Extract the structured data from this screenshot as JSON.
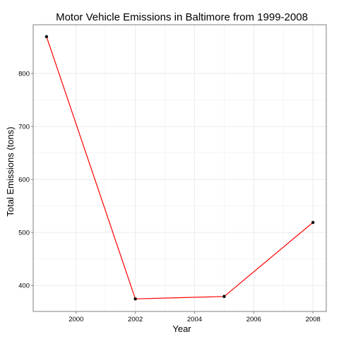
{
  "chart_data": {
    "type": "line",
    "title": "Motor Vehicle Emissions in Baltimore from 1999-2008",
    "xlabel": "Year",
    "ylabel": "Total Emissions (tons)",
    "x": [
      1999,
      2002,
      2005,
      2008
    ],
    "series": [
      {
        "values": [
          869.5,
          374.7,
          379.3,
          518.9
        ]
      }
    ],
    "xlim": [
      1998.55,
      2008.45
    ],
    "ylim": [
      351,
      892
    ],
    "xticks": [
      2000,
      2002,
      2004,
      2006,
      2008
    ],
    "yticks": [
      400,
      500,
      600,
      700,
      800
    ],
    "xtick_labels": [
      "2000",
      "2002",
      "2004",
      "2006",
      "2008"
    ],
    "ytick_labels": [
      "400",
      "500",
      "600",
      "700",
      "800"
    ],
    "grid": true,
    "colors": {
      "line": "#ff0000",
      "points": "#000000",
      "grid": "#ebebeb",
      "panel_border": "#7f7f7f"
    }
  }
}
